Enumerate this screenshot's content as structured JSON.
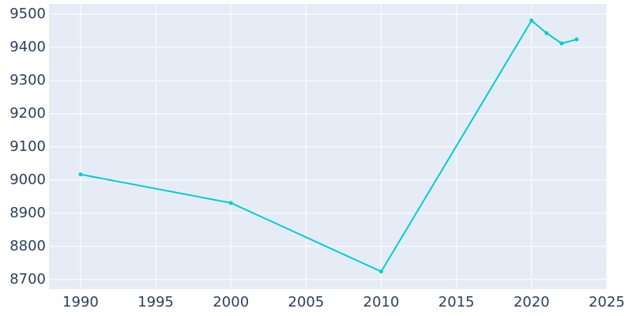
{
  "chart_data": {
    "type": "line",
    "x": [
      1990,
      2000,
      2010,
      2020,
      2021,
      2022,
      2023
    ],
    "series": [
      {
        "color": "#00ced1",
        "values": [
          9017,
          8931,
          8724,
          9481,
          9443,
          9412,
          9424
        ]
      }
    ],
    "xlim": [
      1987.9,
      2025
    ],
    "xticks": [
      1990,
      1995,
      2000,
      2005,
      2010,
      2015,
      2020,
      2025
    ],
    "ylim": [
      8671,
      9531
    ],
    "yticks": [
      8700,
      8800,
      8900,
      9000,
      9100,
      9200,
      9300,
      9400,
      9500
    ],
    "grid": true
  }
}
